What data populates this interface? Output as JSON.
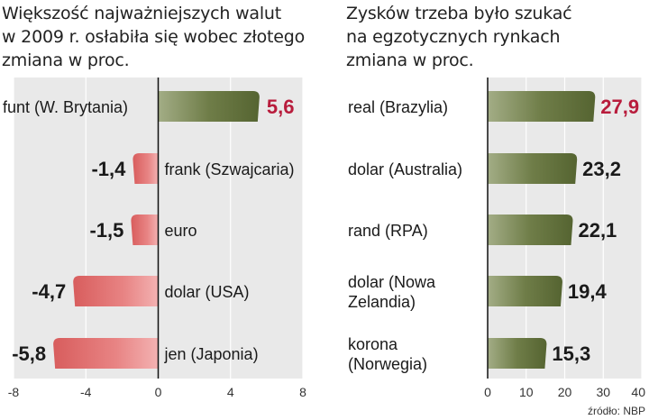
{
  "chart_data": [
    {
      "type": "bar",
      "orientation": "horizontal",
      "title": [
        "Większość najważniejszych walut",
        "w 2009 r. osłabiła się wobec złotego",
        "zmiana w proc."
      ],
      "categories": [
        "funt (W. Brytania)",
        "frank (Szwajcaria)",
        "euro",
        "dolar (USA)",
        "jen (Japonia)"
      ],
      "values": [
        5.6,
        -1.4,
        -1.5,
        -4.7,
        -5.8
      ],
      "value_labels": [
        "5,6",
        "-1,4",
        "-1,5",
        "-4,7",
        "-5,8"
      ],
      "xlim": [
        -8,
        8
      ],
      "ticks": [
        -8,
        -4,
        0,
        4,
        8
      ],
      "tick_labels": [
        "-8",
        "-4",
        "0",
        "4",
        "8"
      ],
      "grid": true
    },
    {
      "type": "bar",
      "orientation": "horizontal",
      "title": [
        "Zysków trzeba było szukać",
        "na egzotycznych rynkach",
        "zmiana w proc."
      ],
      "categories": [
        [
          "real (Brazylia)"
        ],
        [
          "dolar (Australia)"
        ],
        [
          "rand (RPA)"
        ],
        [
          "dolar (Nowa",
          "Zelandia)"
        ],
        [
          "korona",
          "(Norwegia)"
        ]
      ],
      "values": [
        27.9,
        23.2,
        22.1,
        19.4,
        15.3
      ],
      "value_labels": [
        "27,9",
        "23,2",
        "22,1",
        "19,4",
        "15,3"
      ],
      "xlim": [
        0,
        40
      ],
      "ticks": [
        0,
        10,
        20,
        30,
        40
      ],
      "tick_labels": [
        "0",
        "10",
        "20",
        "30",
        "40"
      ],
      "grid": true
    }
  ],
  "colors": {
    "positive_bar": "#5f6e3b",
    "negative_bar": "#e37a7a",
    "highlight_value": "#b81c3c",
    "plot_background": "#e9e9e9"
  },
  "source": "źródło: NBP"
}
